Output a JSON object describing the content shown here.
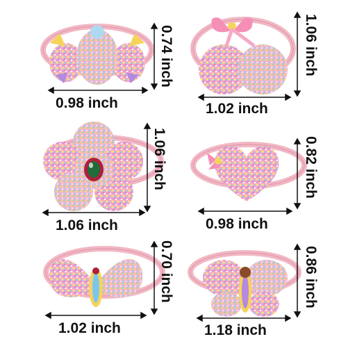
{
  "colors": {
    "band": "#f2b7c4",
    "band_dark": "#dc94a6",
    "gem_pink": "#f58fb6",
    "gem_yellow": "#f6d35a",
    "gem_blue": "#7cc6ee",
    "gem_purple": "#b489e0",
    "center_green": "#1f6b3a",
    "center_red": "#b0203a",
    "line": "#111111"
  },
  "items": [
    {
      "name": "bow-bear",
      "width_label": "0.98 inch",
      "height_label": "0.74 inch"
    },
    {
      "name": "cherry-with-bow",
      "width_label": "1.02 inch",
      "height_label": "1.06 inch"
    },
    {
      "name": "flower",
      "width_label": "1.06 inch",
      "height_label": "1.06 inch"
    },
    {
      "name": "heart-with-bow",
      "width_label": "0.98 inch",
      "height_label": "0.82 inch"
    },
    {
      "name": "bow",
      "width_label": "1.02 inch",
      "height_label": "0.70 inch"
    },
    {
      "name": "butterfly",
      "width_label": "1.18 inch",
      "height_label": "0.86 inch"
    }
  ]
}
